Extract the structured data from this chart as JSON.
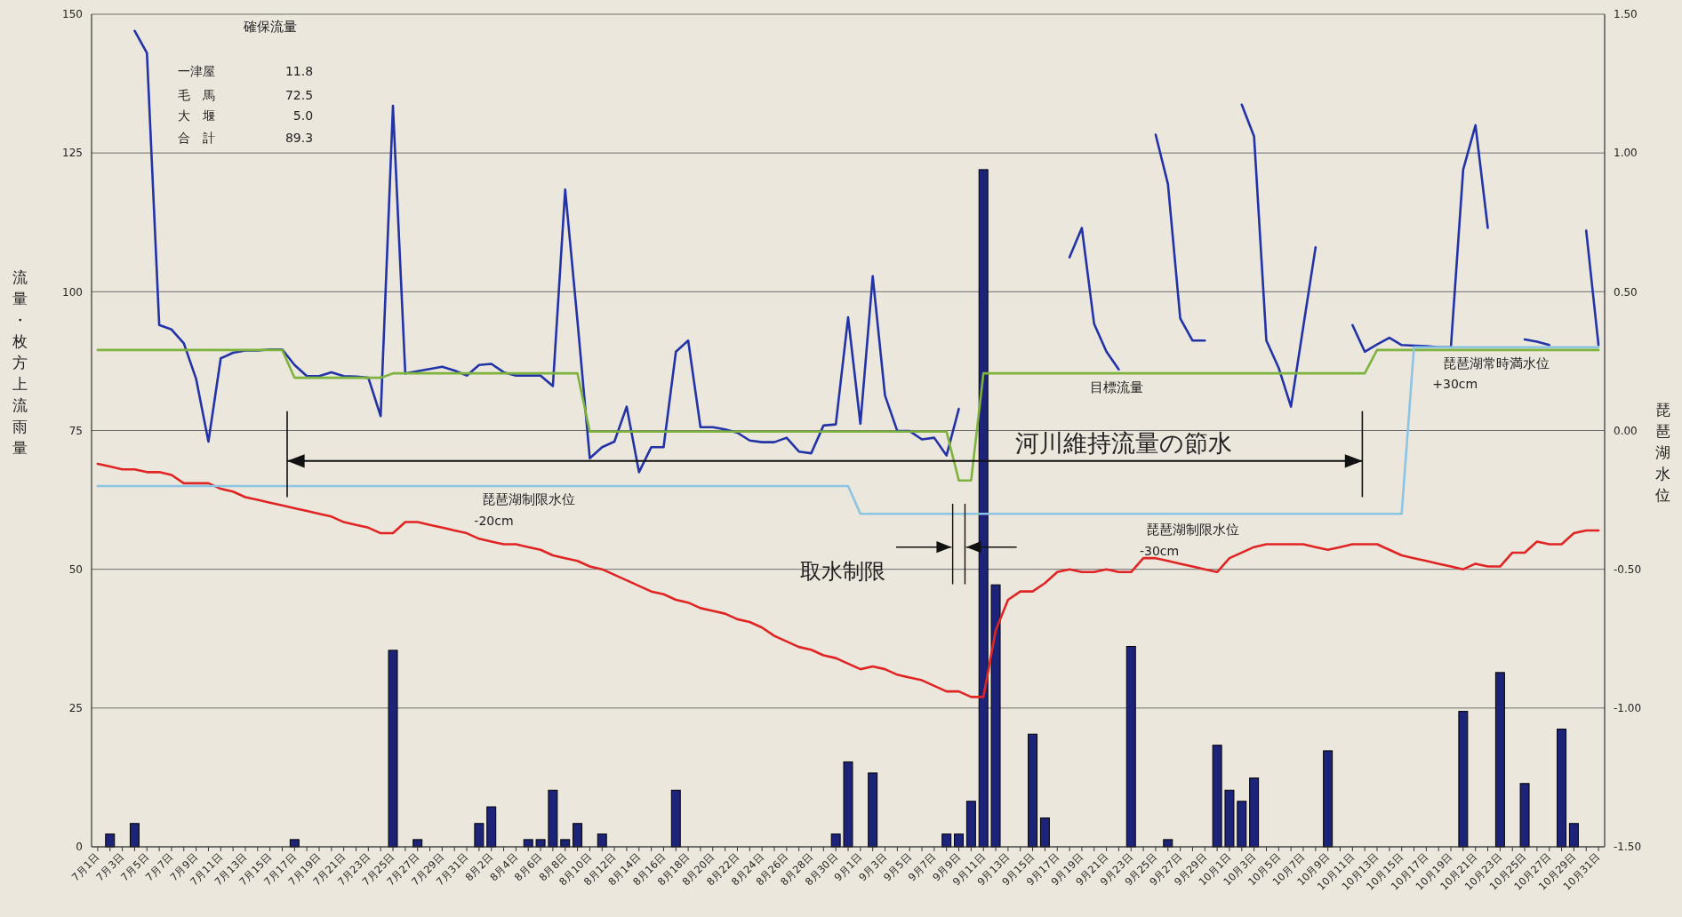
{
  "chart_data": {
    "type": "bar",
    "ylabel": "流量・枚方上流雨量",
    "y2label": "琵琶湖水位",
    "categories": [
      "7月1日",
      null,
      "7月3日",
      null,
      "7月5日",
      null,
      "7月7日",
      null,
      "7月9日",
      null,
      "7月11日",
      null,
      "7月13日",
      null,
      "7月15日",
      null,
      "7月17日",
      null,
      "7月19日",
      null,
      "7月21日",
      null,
      "7月23日",
      null,
      "7月25日",
      null,
      "7月27日",
      null,
      "7月29日",
      null,
      "7月31日",
      null,
      "8月2日",
      null,
      "8月4日",
      null,
      "8月6日",
      null,
      "8月8日",
      null,
      "8月10日",
      null,
      "8月12日",
      null,
      "8月14日",
      null,
      "8月16日",
      null,
      "8月18日",
      null,
      "8月20日",
      null,
      "8月22日",
      null,
      "8月24日",
      null,
      "8月26日",
      null,
      "8月28日",
      null,
      "8月30日",
      null,
      "9月1日",
      null,
      "9月3日",
      null,
      "9月5日",
      null,
      "9月7日",
      null,
      "9月9日",
      null,
      "9月11日",
      null,
      "9月13日",
      null,
      "9月15日",
      null,
      "9月17日",
      null,
      "9月19日",
      null,
      "9月21日",
      null,
      "9月23日",
      null,
      "9月25日",
      null,
      "9月27日",
      null,
      "9月29日",
      null,
      "10月1日",
      null,
      "10月3日",
      null,
      "10月5日",
      null,
      "10月7日",
      null,
      "10月9日",
      null,
      "10月11日",
      null,
      "10月13日",
      null,
      "10月15日",
      null,
      "10月17日",
      null,
      "10月19日",
      null,
      "10月21日",
      null,
      "10月23日",
      null,
      "10月25日",
      null,
      "10月27日",
      null,
      "10月29日",
      null,
      "10月31日"
    ],
    "series": [
      {
        "color": "#1c2378",
        "values": [
          0,
          2.3,
          0,
          4.2,
          0,
          0,
          0,
          0,
          0,
          0,
          0,
          0,
          0,
          0,
          0,
          0,
          1.3,
          0,
          0,
          0,
          0,
          0,
          0,
          0,
          35.4,
          0,
          1.3,
          0,
          0,
          0,
          0,
          4.2,
          7.2,
          0,
          0,
          1.3,
          1.3,
          10.2,
          1.3,
          4.2,
          0,
          2.3,
          0,
          0,
          0,
          0,
          0,
          10.2,
          0,
          0,
          0,
          0,
          0,
          0,
          0,
          0,
          0,
          0,
          0,
          0,
          2.3,
          15.3,
          0,
          13.3,
          0,
          0,
          0,
          0,
          0,
          2.3,
          2.3,
          8.2,
          122,
          47.2,
          0,
          0,
          20.3,
          5.2,
          0,
          0,
          0,
          0,
          0,
          0,
          36.1,
          0,
          0,
          1.3,
          0,
          0,
          0,
          18.3,
          10.2,
          8.2,
          12.4,
          0,
          0,
          0,
          0,
          0,
          17.3,
          0,
          0,
          0,
          0,
          0,
          0,
          0,
          0,
          0,
          0,
          24.4,
          0,
          0,
          31.4,
          0,
          11.4,
          0,
          0,
          21.2,
          4.2,
          0,
          0
        ]
      },
      {
        "type": "line",
        "color": "#2233a8",
        "values": [
          null,
          null,
          null,
          147,
          143,
          94,
          93.2,
          90.7,
          84.3,
          73,
          88,
          89,
          89.4,
          89.4,
          89.6,
          89.6,
          86.8,
          84.8,
          84.8,
          85.5,
          84.8,
          84.7,
          84.5,
          77.6,
          133.5,
          85.3,
          85.7,
          86.1,
          86.5,
          85.8,
          84.9,
          86.8,
          87,
          85.5,
          84.9,
          84.9,
          84.9,
          83,
          118.4,
          94.7,
          70,
          72,
          73,
          79.3,
          67.5,
          72,
          72,
          89.2,
          91.2,
          75.6,
          75.6,
          75.2,
          74.6,
          73.2,
          72.9,
          72.9,
          73.7,
          71.2,
          70.9,
          75.9,
          76.1,
          95.4,
          76.2,
          102.8,
          81.3,
          74.9,
          74.9,
          73.4,
          73.7,
          70.5,
          78.9,
          null,
          null,
          null,
          null,
          null,
          null,
          null,
          null,
          106.2,
          111.5,
          94.2,
          89.2,
          86,
          null,
          null,
          128.3,
          119.4,
          95.2,
          91.2,
          91.2,
          null,
          null,
          133.7,
          128,
          91.2,
          86.3,
          79.3,
          93.7,
          108,
          null,
          null,
          94,
          89.2,
          90.5,
          91.7,
          90.4,
          90.3,
          90.2,
          90,
          90,
          122,
          130,
          111.5,
          null,
          null,
          91.4,
          91,
          90.4,
          null,
          null,
          111,
          90.4
        ]
      },
      {
        "type": "line",
        "name": "目標流量",
        "color": "#7db33c",
        "values": [
          89.5,
          89.5,
          89.5,
          89.5,
          89.5,
          89.5,
          89.5,
          89.5,
          89.5,
          89.5,
          89.5,
          89.5,
          89.5,
          89.5,
          89.5,
          89.5,
          84.5,
          84.5,
          84.5,
          84.5,
          84.5,
          84.5,
          84.5,
          84.5,
          85.3,
          85.3,
          85.3,
          85.3,
          85.3,
          85.3,
          85.3,
          85.3,
          85.3,
          85.3,
          85.3,
          85.3,
          85.3,
          85.3,
          85.3,
          85.3,
          74.8,
          74.8,
          74.8,
          74.8,
          74.8,
          74.8,
          74.8,
          74.8,
          74.8,
          74.8,
          74.8,
          74.8,
          74.8,
          74.8,
          74.8,
          74.8,
          74.8,
          74.8,
          74.8,
          74.8,
          74.8,
          74.8,
          74.8,
          74.8,
          74.8,
          74.8,
          74.8,
          74.8,
          74.8,
          74.8,
          66,
          66,
          85.3,
          85.3,
          85.3,
          85.3,
          85.3,
          85.3,
          85.3,
          85.3,
          85.3,
          85.3,
          85.3,
          85.3,
          85.3,
          85.3,
          85.3,
          85.3,
          85.3,
          85.3,
          85.3,
          85.3,
          85.3,
          85.3,
          85.3,
          85.3,
          85.3,
          85.3,
          85.3,
          85.3,
          85.3,
          85.3,
          85.3,
          85.3,
          89.5,
          89.5,
          89.5,
          89.5,
          89.5,
          89.5,
          89.5,
          89.5,
          89.5,
          89.5,
          89.5,
          89.5,
          89.5,
          89.5,
          89.5,
          89.5,
          89.5,
          89.5,
          89.5
        ]
      },
      {
        "type": "line",
        "axis": "y2",
        "color": "#e02424",
        "values": [
          -0.12,
          -0.13,
          -0.14,
          -0.14,
          -0.15,
          -0.15,
          -0.16,
          -0.19,
          -0.19,
          -0.19,
          -0.21,
          -0.22,
          -0.24,
          -0.25,
          -0.26,
          -0.27,
          -0.28,
          -0.29,
          -0.3,
          -0.31,
          -0.33,
          -0.34,
          -0.35,
          -0.37,
          -0.37,
          -0.33,
          -0.33,
          -0.34,
          -0.35,
          -0.36,
          -0.37,
          -0.39,
          -0.4,
          -0.41,
          -0.41,
          -0.42,
          -0.43,
          -0.45,
          -0.46,
          -0.47,
          -0.49,
          -0.5,
          -0.52,
          -0.54,
          -0.56,
          -0.58,
          -0.59,
          -0.61,
          -0.62,
          -0.64,
          -0.65,
          -0.66,
          -0.68,
          -0.69,
          -0.71,
          -0.74,
          -0.76,
          -0.78,
          -0.79,
          -0.81,
          -0.82,
          -0.84,
          -0.86,
          -0.85,
          -0.86,
          -0.88,
          -0.89,
          -0.9,
          -0.92,
          -0.94,
          -0.94,
          -0.96,
          -0.96,
          -0.72,
          -0.61,
          -0.58,
          -0.58,
          -0.55,
          -0.51,
          -0.5,
          -0.51,
          -0.51,
          -0.5,
          -0.51,
          -0.51,
          -0.46,
          -0.46,
          -0.47,
          -0.48,
          -0.49,
          -0.5,
          -0.51,
          -0.46,
          -0.44,
          -0.42,
          -0.41,
          -0.41,
          -0.41,
          -0.41,
          -0.42,
          -0.43,
          -0.42,
          -0.41,
          -0.41,
          -0.41,
          -0.43,
          -0.45,
          -0.46,
          -0.47,
          -0.48,
          -0.49,
          -0.5,
          -0.48,
          -0.49,
          -0.49,
          -0.44,
          -0.44,
          -0.4,
          -0.41,
          -0.41,
          -0.37,
          -0.36,
          -0.36
        ]
      },
      {
        "type": "line",
        "axis": "y2",
        "color": "#8cc4e4",
        "values": [
          -0.2,
          -0.2,
          -0.2,
          -0.2,
          -0.2,
          -0.2,
          -0.2,
          -0.2,
          -0.2,
          -0.2,
          -0.2,
          -0.2,
          -0.2,
          -0.2,
          -0.2,
          -0.2,
          -0.2,
          -0.2,
          -0.2,
          -0.2,
          -0.2,
          -0.2,
          -0.2,
          -0.2,
          -0.2,
          -0.2,
          -0.2,
          -0.2,
          -0.2,
          -0.2,
          -0.2,
          -0.2,
          -0.2,
          -0.2,
          -0.2,
          -0.2,
          -0.2,
          -0.2,
          -0.2,
          -0.2,
          -0.2,
          -0.2,
          -0.2,
          -0.2,
          -0.2,
          -0.2,
          -0.2,
          -0.2,
          -0.2,
          -0.2,
          -0.2,
          -0.2,
          -0.2,
          -0.2,
          -0.2,
          -0.2,
          -0.2,
          -0.2,
          -0.2,
          -0.2,
          -0.2,
          -0.2,
          -0.3,
          -0.3,
          -0.3,
          -0.3,
          -0.3,
          -0.3,
          -0.3,
          -0.3,
          -0.3,
          -0.3,
          -0.3,
          -0.3,
          -0.3,
          -0.3,
          -0.3,
          -0.3,
          -0.3,
          -0.3,
          -0.3,
          -0.3,
          -0.3,
          -0.3,
          -0.3,
          -0.3,
          -0.3,
          -0.3,
          -0.3,
          -0.3,
          -0.3,
          -0.3,
          -0.3,
          -0.3,
          -0.3,
          -0.3,
          -0.3,
          -0.3,
          -0.3,
          -0.3,
          -0.3,
          -0.3,
          -0.3,
          -0.3,
          -0.3,
          -0.3,
          -0.3,
          0.3,
          0.3,
          0.3,
          0.3,
          0.3,
          0.3,
          0.3,
          0.3,
          0.3,
          0.3,
          0.3,
          0.3,
          0.3,
          0.3,
          0.3,
          0.3
        ]
      }
    ],
    "ylim": [
      0,
      150
    ],
    "yticks": [
      0,
      25,
      50,
      75,
      100,
      125,
      150
    ],
    "y2lim": [
      -1.5,
      1.5
    ],
    "y2ticks": [
      {
        "value": -1.5,
        "label": "-1.50"
      },
      {
        "value": -1,
        "label": "-1.00"
      },
      {
        "value": -0.5,
        "label": "-0.50"
      },
      {
        "value": 0,
        "label": "0.00"
      },
      {
        "value": 0.5,
        "label": "0.50"
      },
      {
        "value": 1,
        "label": "1.00"
      },
      {
        "value": 1.5,
        "label": "1.50"
      }
    ],
    "grid": "y",
    "annotations": [
      "確保流量",
      "一津屋 11.8",
      "毛　馬 72.5",
      "大　堰 5.0",
      "合　計 89.3",
      "河川維持流量の節水",
      "琵琶湖制限水位",
      "-20cm",
      "取水制限",
      "琵琶湖制限水位",
      "-30cm",
      "琵琶湖常時満水位",
      "+30cm"
    ]
  }
}
